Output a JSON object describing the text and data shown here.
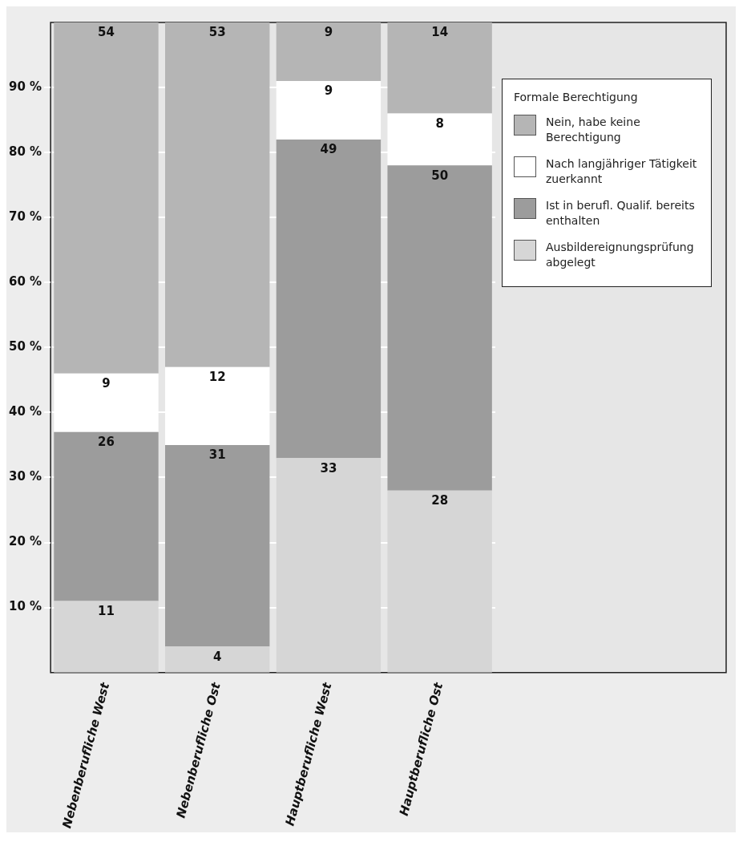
{
  "chart_data": {
    "type": "bar",
    "stacked": true,
    "categories": [
      "Nebenberufliche West",
      "Nebenberufliche Ost",
      "Hauptberufliche West",
      "Hauptberufliche Ost"
    ],
    "series": [
      {
        "name": "Ausbildereignungsprüfung abgelegt",
        "color": "#d6d6d6",
        "values": [
          11,
          4,
          33,
          28
        ]
      },
      {
        "name": "Ist in berufl. Qualif. bereits enthalten",
        "color": "#9c9c9c",
        "values": [
          26,
          31,
          49,
          50
        ]
      },
      {
        "name": "Nach langjähriger Tätigkeit zuerkannt",
        "color": "#ffffff",
        "values": [
          9,
          12,
          9,
          8
        ]
      },
      {
        "name": "Nein, habe keine Berechtigung",
        "color": "#b5b5b5",
        "values": [
          54,
          53,
          9,
          14
        ]
      }
    ],
    "ylim": [
      0,
      100
    ],
    "yticks": [
      {
        "value": 10,
        "label": "10 %"
      },
      {
        "value": 20,
        "label": "20 %"
      },
      {
        "value": 30,
        "label": "30 %"
      },
      {
        "value": 40,
        "label": "40 %"
      },
      {
        "value": 50,
        "label": "50 %"
      },
      {
        "value": 60,
        "label": "60 %"
      },
      {
        "value": 70,
        "label": "70 %"
      },
      {
        "value": 80,
        "label": "80 %"
      },
      {
        "value": 90,
        "label": "90 %"
      }
    ],
    "grid": "y",
    "legend": "top right",
    "legend_title": "Formale Berechtigung",
    "data_labels": true
  }
}
